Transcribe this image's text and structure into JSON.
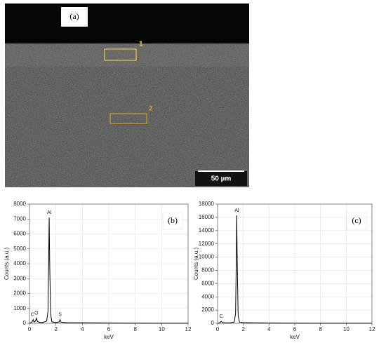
{
  "image": {
    "label": "(a)",
    "markers": [
      "1",
      "2"
    ],
    "scale_bar": "50 µm"
  },
  "chart_data": [
    {
      "type": "line",
      "panel_label": "(b)",
      "xlabel": "keV",
      "ylabel": "Counts (a.u.)",
      "x": [
        0,
        0.1,
        0.2,
        0.28,
        0.35,
        0.45,
        0.52,
        0.6,
        0.8,
        1.0,
        1.3,
        1.4,
        1.45,
        1.49,
        1.53,
        1.6,
        1.7,
        2.0,
        2.25,
        2.31,
        2.4,
        2.8,
        4,
        6,
        8,
        10,
        12
      ],
      "values": [
        0,
        50,
        100,
        250,
        80,
        150,
        350,
        120,
        60,
        60,
        150,
        800,
        4000,
        7100,
        4000,
        600,
        100,
        60,
        100,
        250,
        80,
        50,
        40,
        30,
        20,
        10,
        10
      ],
      "color": "#000000",
      "xlim": [
        0,
        12
      ],
      "xticks": [
        0,
        2,
        4,
        6,
        8,
        10,
        12
      ],
      "ylim": [
        0,
        8000
      ],
      "yticks": [
        0,
        1000,
        2000,
        3000,
        4000,
        5000,
        6000,
        7000,
        8000
      ],
      "grid": true,
      "annotations": [
        {
          "text": "Al",
          "x": 1.49,
          "y": 7100
        },
        {
          "text": "C",
          "x": 0.22,
          "y": 250
        },
        {
          "text": "O",
          "x": 0.52,
          "y": 350
        },
        {
          "text": "S",
          "x": 2.31,
          "y": 250
        }
      ]
    },
    {
      "type": "line",
      "panel_label": "(c)",
      "xlabel": "keV",
      "ylabel": "Counts (a.u.)",
      "x": [
        0,
        0.1,
        0.2,
        0.28,
        0.4,
        0.6,
        1.0,
        1.3,
        1.4,
        1.45,
        1.49,
        1.53,
        1.6,
        1.7,
        2.0,
        3.0,
        4,
        6,
        8,
        10,
        12
      ],
      "values": [
        0,
        60,
        120,
        300,
        100,
        80,
        80,
        200,
        1500,
        9000,
        16300,
        9000,
        1200,
        200,
        100,
        80,
        60,
        40,
        30,
        20,
        20
      ],
      "color": "#000000",
      "xlim": [
        0,
        12
      ],
      "xticks": [
        0,
        2,
        4,
        6,
        8,
        10,
        12
      ],
      "ylim": [
        0,
        18000
      ],
      "yticks": [
        0,
        2000,
        4000,
        6000,
        8000,
        10000,
        12000,
        14000,
        16000,
        18000
      ],
      "grid": true,
      "annotations": [
        {
          "text": "Al",
          "x": 1.49,
          "y": 16300
        },
        {
          "text": "C",
          "x": 0.28,
          "y": 300
        }
      ]
    }
  ]
}
